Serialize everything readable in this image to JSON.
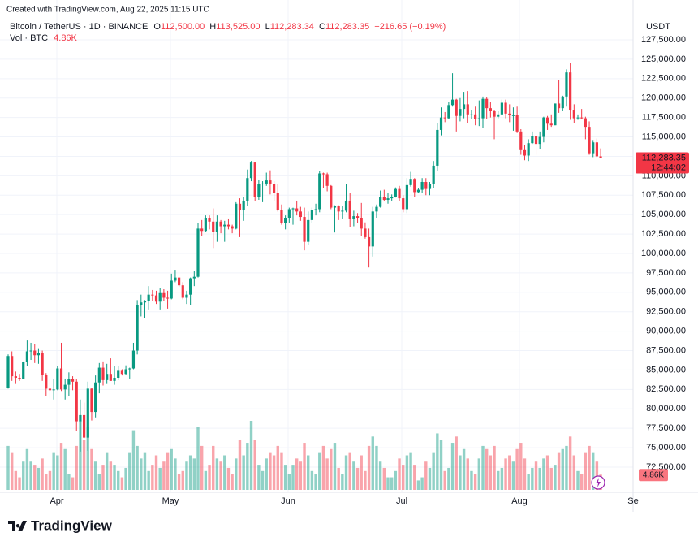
{
  "chart_data": {
    "type": "candlestick",
    "watermark": "Created with TradingView.com, Aug 22, 2025 11:15 UTC",
    "legend": {
      "symbol": "Bitcoin / TetherUS · 1D · BINANCE",
      "o_label": "O",
      "o": "112,500.00",
      "h_label": "H",
      "h": "113,525.00",
      "l_label": "L",
      "l": "112,283.34",
      "c_label": "C",
      "c": "112,283.35",
      "change": "−216.65 (−0.19%)",
      "vol_label": "Vol · BTC",
      "vol": "4.86K"
    },
    "currency": "USDT",
    "brand": "TradingView",
    "month_labels": [
      "Apr",
      "May",
      "Jun",
      "Jul",
      "Aug",
      "Se"
    ],
    "up_color": "#089981",
    "down_color": "#f23645",
    "grid": true,
    "ylim": [
      69360,
      132625
    ],
    "yticks": [
      {
        "value": 72500,
        "label": "72,500.00"
      },
      {
        "value": 75000,
        "label": "75,000.00"
      },
      {
        "value": 77500,
        "label": "77,500.00"
      },
      {
        "value": 80000,
        "label": "80,000.00"
      },
      {
        "value": 82500,
        "label": "82,500.00"
      },
      {
        "value": 85000,
        "label": "85,000.00"
      },
      {
        "value": 87500,
        "label": "87,500.00"
      },
      {
        "value": 90000,
        "label": "90,000.00"
      },
      {
        "value": 92500,
        "label": "92,500.00"
      },
      {
        "value": 95000,
        "label": "95,000.00"
      },
      {
        "value": 97500,
        "label": "97,500.00"
      },
      {
        "value": 100000,
        "label": "100,000.00"
      },
      {
        "value": 102500,
        "label": "102,500.00"
      },
      {
        "value": 105000,
        "label": "105,000.00"
      },
      {
        "value": 107500,
        "label": "107,500.00"
      },
      {
        "value": 110000,
        "label": "110,000.00"
      },
      {
        "value": 112500,
        "label": "112,500.00"
      },
      {
        "value": 115000,
        "label": "115,000.00"
      },
      {
        "value": 117500,
        "label": "117,500.00"
      },
      {
        "value": 120000,
        "label": "120,000.00"
      },
      {
        "value": 122500,
        "label": "122,500.00"
      },
      {
        "value": 125000,
        "label": "125,000.00"
      },
      {
        "value": 127500,
        "label": "127,500.00"
      }
    ],
    "last_price": {
      "value": 112283.35,
      "label": "112,283.35"
    },
    "countdown": "12:44:02",
    "volume_badge": {
      "value": 4860,
      "label": "4.86K"
    },
    "open": [
      82700,
      86800,
      84200,
      84000,
      83800,
      86000,
      87400,
      87500,
      86900,
      87200,
      84400,
      82600,
      82400,
      82500,
      85200,
      82500,
      83100,
      83800,
      83500,
      78400,
      79200,
      76300,
      82600,
      79600,
      83400,
      85300,
      83700,
      84500,
      83600,
      84000,
      84900,
      84500,
      85100,
      85200,
      87500,
      93400,
      93700,
      93900,
      94700,
      94600,
      93800,
      94900,
      94300,
      94200,
      96500,
      96900,
      95900,
      94300,
      94700,
      96800,
      97000,
      103200,
      102900,
      104600,
      104100,
      102800,
      104100,
      103500,
      103700,
      103500,
      103200,
      106400,
      105600,
      106800,
      109700,
      111700,
      107300,
      108900,
      109000,
      109400,
      108900,
      107800,
      105600,
      103900,
      104600,
      105700,
      105800,
      105400,
      104700,
      101500,
      104300,
      105600,
      105700,
      110300,
      110200,
      108700,
      105900,
      106100,
      105400,
      105500,
      106800,
      104500,
      104800,
      104600,
      103200,
      102100,
      100900,
      105400,
      106000,
      107300,
      106900,
      107100,
      107300,
      108300,
      107100,
      105700,
      108800,
      109600,
      107900,
      108200,
      109200,
      108300,
      108900,
      111300,
      115900,
      117500,
      117400,
      119100,
      119800,
      117700,
      118600,
      119200,
      117900,
      117900,
      117300,
      117400,
      119900,
      118700,
      118300,
      117600,
      117900,
      119400,
      118000,
      117800,
      117800,
      115700,
      113300,
      112600,
      114200,
      115100,
      114100,
      115000,
      117500,
      116700,
      116500,
      119300,
      118700,
      120200,
      123300,
      118400,
      117400,
      117500,
      117400,
      116300,
      112900,
      114300,
      112500
    ],
    "high": [
      87000,
      87400,
      84800,
      84500,
      86100,
      88800,
      88500,
      88300,
      87800,
      87500,
      84600,
      83900,
      83900,
      85500,
      88500,
      83900,
      84700,
      84200,
      83800,
      81200,
      80800,
      83500,
      82700,
      84300,
      85900,
      86100,
      85800,
      86500,
      85500,
      85500,
      85100,
      85600,
      85300,
      88500,
      94000,
      94700,
      94000,
      95800,
      95300,
      95200,
      95600,
      95400,
      95200,
      97400,
      97900,
      96900,
      96300,
      95200,
      96900,
      97700,
      103900,
      104300,
      104900,
      104900,
      105800,
      104900,
      104300,
      104200,
      104500,
      103700,
      106600,
      107100,
      107300,
      110800,
      111900,
      111800,
      109500,
      109300,
      110400,
      110700,
      109300,
      108900,
      106300,
      104900,
      105900,
      105900,
      106800,
      106000,
      105900,
      105400,
      105900,
      106400,
      110600,
      110400,
      110400,
      108800,
      106200,
      106200,
      106100,
      108900,
      107800,
      105500,
      105200,
      106500,
      104000,
      103200,
      106000,
      106300,
      108100,
      108200,
      107800,
      107600,
      108500,
      108700,
      107500,
      109700,
      110500,
      109700,
      108400,
      109700,
      109700,
      109200,
      111900,
      116800,
      118800,
      118200,
      119500,
      123200,
      119900,
      120000,
      120800,
      120900,
      118500,
      118900,
      119700,
      120200,
      120100,
      119500,
      118400,
      118300,
      119800,
      119800,
      119200,
      118800,
      118900,
      116000,
      114000,
      114700,
      115700,
      115100,
      115700,
      117600,
      117700,
      117900,
      119300,
      122300,
      120300,
      123700,
      124500,
      119200,
      117900,
      118600,
      117600,
      117000,
      114600,
      114800,
      113525
    ],
    "low": [
      82600,
      83600,
      83200,
      83600,
      83800,
      85500,
      86300,
      85900,
      85800,
      83600,
      81600,
      81300,
      81200,
      82400,
      82300,
      81200,
      81600,
      82400,
      77200,
      74500,
      76200,
      74600,
      78500,
      78900,
      82000,
      83000,
      83200,
      83600,
      83100,
      83700,
      84300,
      84400,
      83900,
      85100,
      87000,
      91900,
      91700,
      92800,
      93900,
      93500,
      92800,
      93900,
      92900,
      94100,
      96300,
      95700,
      94100,
      93500,
      93400,
      95800,
      96900,
      102300,
      102800,
      103100,
      100700,
      101500,
      102600,
      101500,
      103100,
      102600,
      103100,
      102100,
      104200,
      106100,
      109300,
      106800,
      106900,
      106600,
      108700,
      107600,
      106800,
      105400,
      103700,
      103100,
      103900,
      103700,
      104900,
      104200,
      100400,
      101100,
      103900,
      104900,
      105300,
      108400,
      108000,
      105700,
      102700,
      104300,
      104500,
      105300,
      103400,
      103500,
      103900,
      102300,
      101900,
      98200,
      99600,
      104600,
      105900,
      106700,
      106400,
      106800,
      107200,
      106700,
      105300,
      105200,
      108600,
      107300,
      107800,
      107800,
      107500,
      107500,
      108400,
      110600,
      115200,
      116900,
      117300,
      118900,
      115700,
      117000,
      117400,
      116800,
      117300,
      116500,
      116400,
      116100,
      117300,
      117500,
      114700,
      117400,
      117800,
      117400,
      116900,
      115800,
      115500,
      112700,
      112000,
      111900,
      114100,
      112700,
      113400,
      114300,
      115900,
      116300,
      116500,
      118100,
      118300,
      118900,
      117200,
      116800,
      117200,
      117300,
      114700,
      112700,
      112400,
      112400,
      112283.34
    ],
    "close": [
      86800,
      84200,
      84000,
      83800,
      86000,
      87400,
      87500,
      86900,
      87200,
      84400,
      82600,
      82400,
      82500,
      85200,
      82500,
      83100,
      83800,
      83500,
      78400,
      79200,
      76300,
      82600,
      79600,
      83400,
      85300,
      83700,
      84500,
      83600,
      84000,
      84900,
      84500,
      85100,
      85200,
      87500,
      93400,
      93700,
      93900,
      94700,
      94600,
      93800,
      94900,
      94300,
      94200,
      96500,
      96900,
      95900,
      94300,
      94700,
      96800,
      97000,
      103200,
      102900,
      104600,
      104100,
      102800,
      104100,
      103500,
      103700,
      103500,
      103200,
      106400,
      105600,
      106800,
      109700,
      111700,
      107300,
      108900,
      109000,
      109400,
      108900,
      107800,
      105600,
      103900,
      104600,
      105700,
      105800,
      105400,
      104700,
      101500,
      104300,
      105600,
      105700,
      110300,
      110200,
      108700,
      105900,
      106100,
      105400,
      105500,
      106800,
      104500,
      104800,
      104600,
      103200,
      102100,
      100900,
      105400,
      106000,
      107300,
      106900,
      107100,
      107300,
      108300,
      107100,
      105700,
      108800,
      109600,
      107900,
      108200,
      109200,
      108300,
      108900,
      111300,
      115900,
      117500,
      117400,
      119100,
      119800,
      117700,
      118600,
      119200,
      117900,
      117900,
      117300,
      117400,
      119900,
      118700,
      118300,
      117600,
      117900,
      119400,
      118000,
      117800,
      117800,
      115700,
      113300,
      112600,
      114200,
      115100,
      114100,
      115000,
      117500,
      116700,
      116500,
      119300,
      118700,
      120200,
      123300,
      118400,
      117400,
      117500,
      117400,
      116300,
      112900,
      114300,
      112500,
      112283.35
    ],
    "volume": [
      14000,
      12000,
      6000,
      4000,
      9000,
      13000,
      9000,
      8000,
      7000,
      10000,
      5000,
      6000,
      12000,
      11000,
      15000,
      13000,
      5000,
      4000,
      14000,
      22000,
      16000,
      20000,
      13000,
      9000,
      5000,
      8000,
      12000,
      9000,
      8000,
      6000,
      4000,
      7000,
      12000,
      19000,
      14000,
      10000,
      12000,
      6000,
      8000,
      11000,
      7000,
      9000,
      12000,
      13000,
      10000,
      5000,
      6000,
      9000,
      11000,
      10000,
      20000,
      14000,
      6000,
      8000,
      14000,
      10000,
      9000,
      11000,
      7000,
      5000,
      10000,
      16000,
      11000,
      15000,
      22000,
      16000,
      8000,
      6000,
      10000,
      12000,
      11000,
      14000,
      12000,
      8000,
      5000,
      8000,
      10000,
      9000,
      15000,
      11000,
      6000,
      5000,
      12000,
      14000,
      10000,
      13000,
      15000,
      7000,
      5000,
      11000,
      12000,
      9000,
      7000,
      11000,
      6000,
      14000,
      17000,
      14000,
      9000,
      7000,
      4000,
      4000,
      6000,
      10000,
      8000,
      11000,
      12000,
      8000,
      3000,
      4000,
      9000,
      7000,
      12000,
      18000,
      16000,
      6000,
      7000,
      15000,
      17000,
      11000,
      13000,
      10000,
      6000,
      5000,
      10000,
      14000,
      13000,
      11000,
      14000,
      6000,
      7000,
      10000,
      11000,
      9000,
      13000,
      15000,
      10000,
      5000,
      7000,
      9000,
      7000,
      10000,
      11000,
      7000,
      8000,
      12000,
      13000,
      14000,
      17000,
      11000,
      6000,
      5000,
      12000,
      14000,
      12000,
      9000,
      4860
    ]
  }
}
